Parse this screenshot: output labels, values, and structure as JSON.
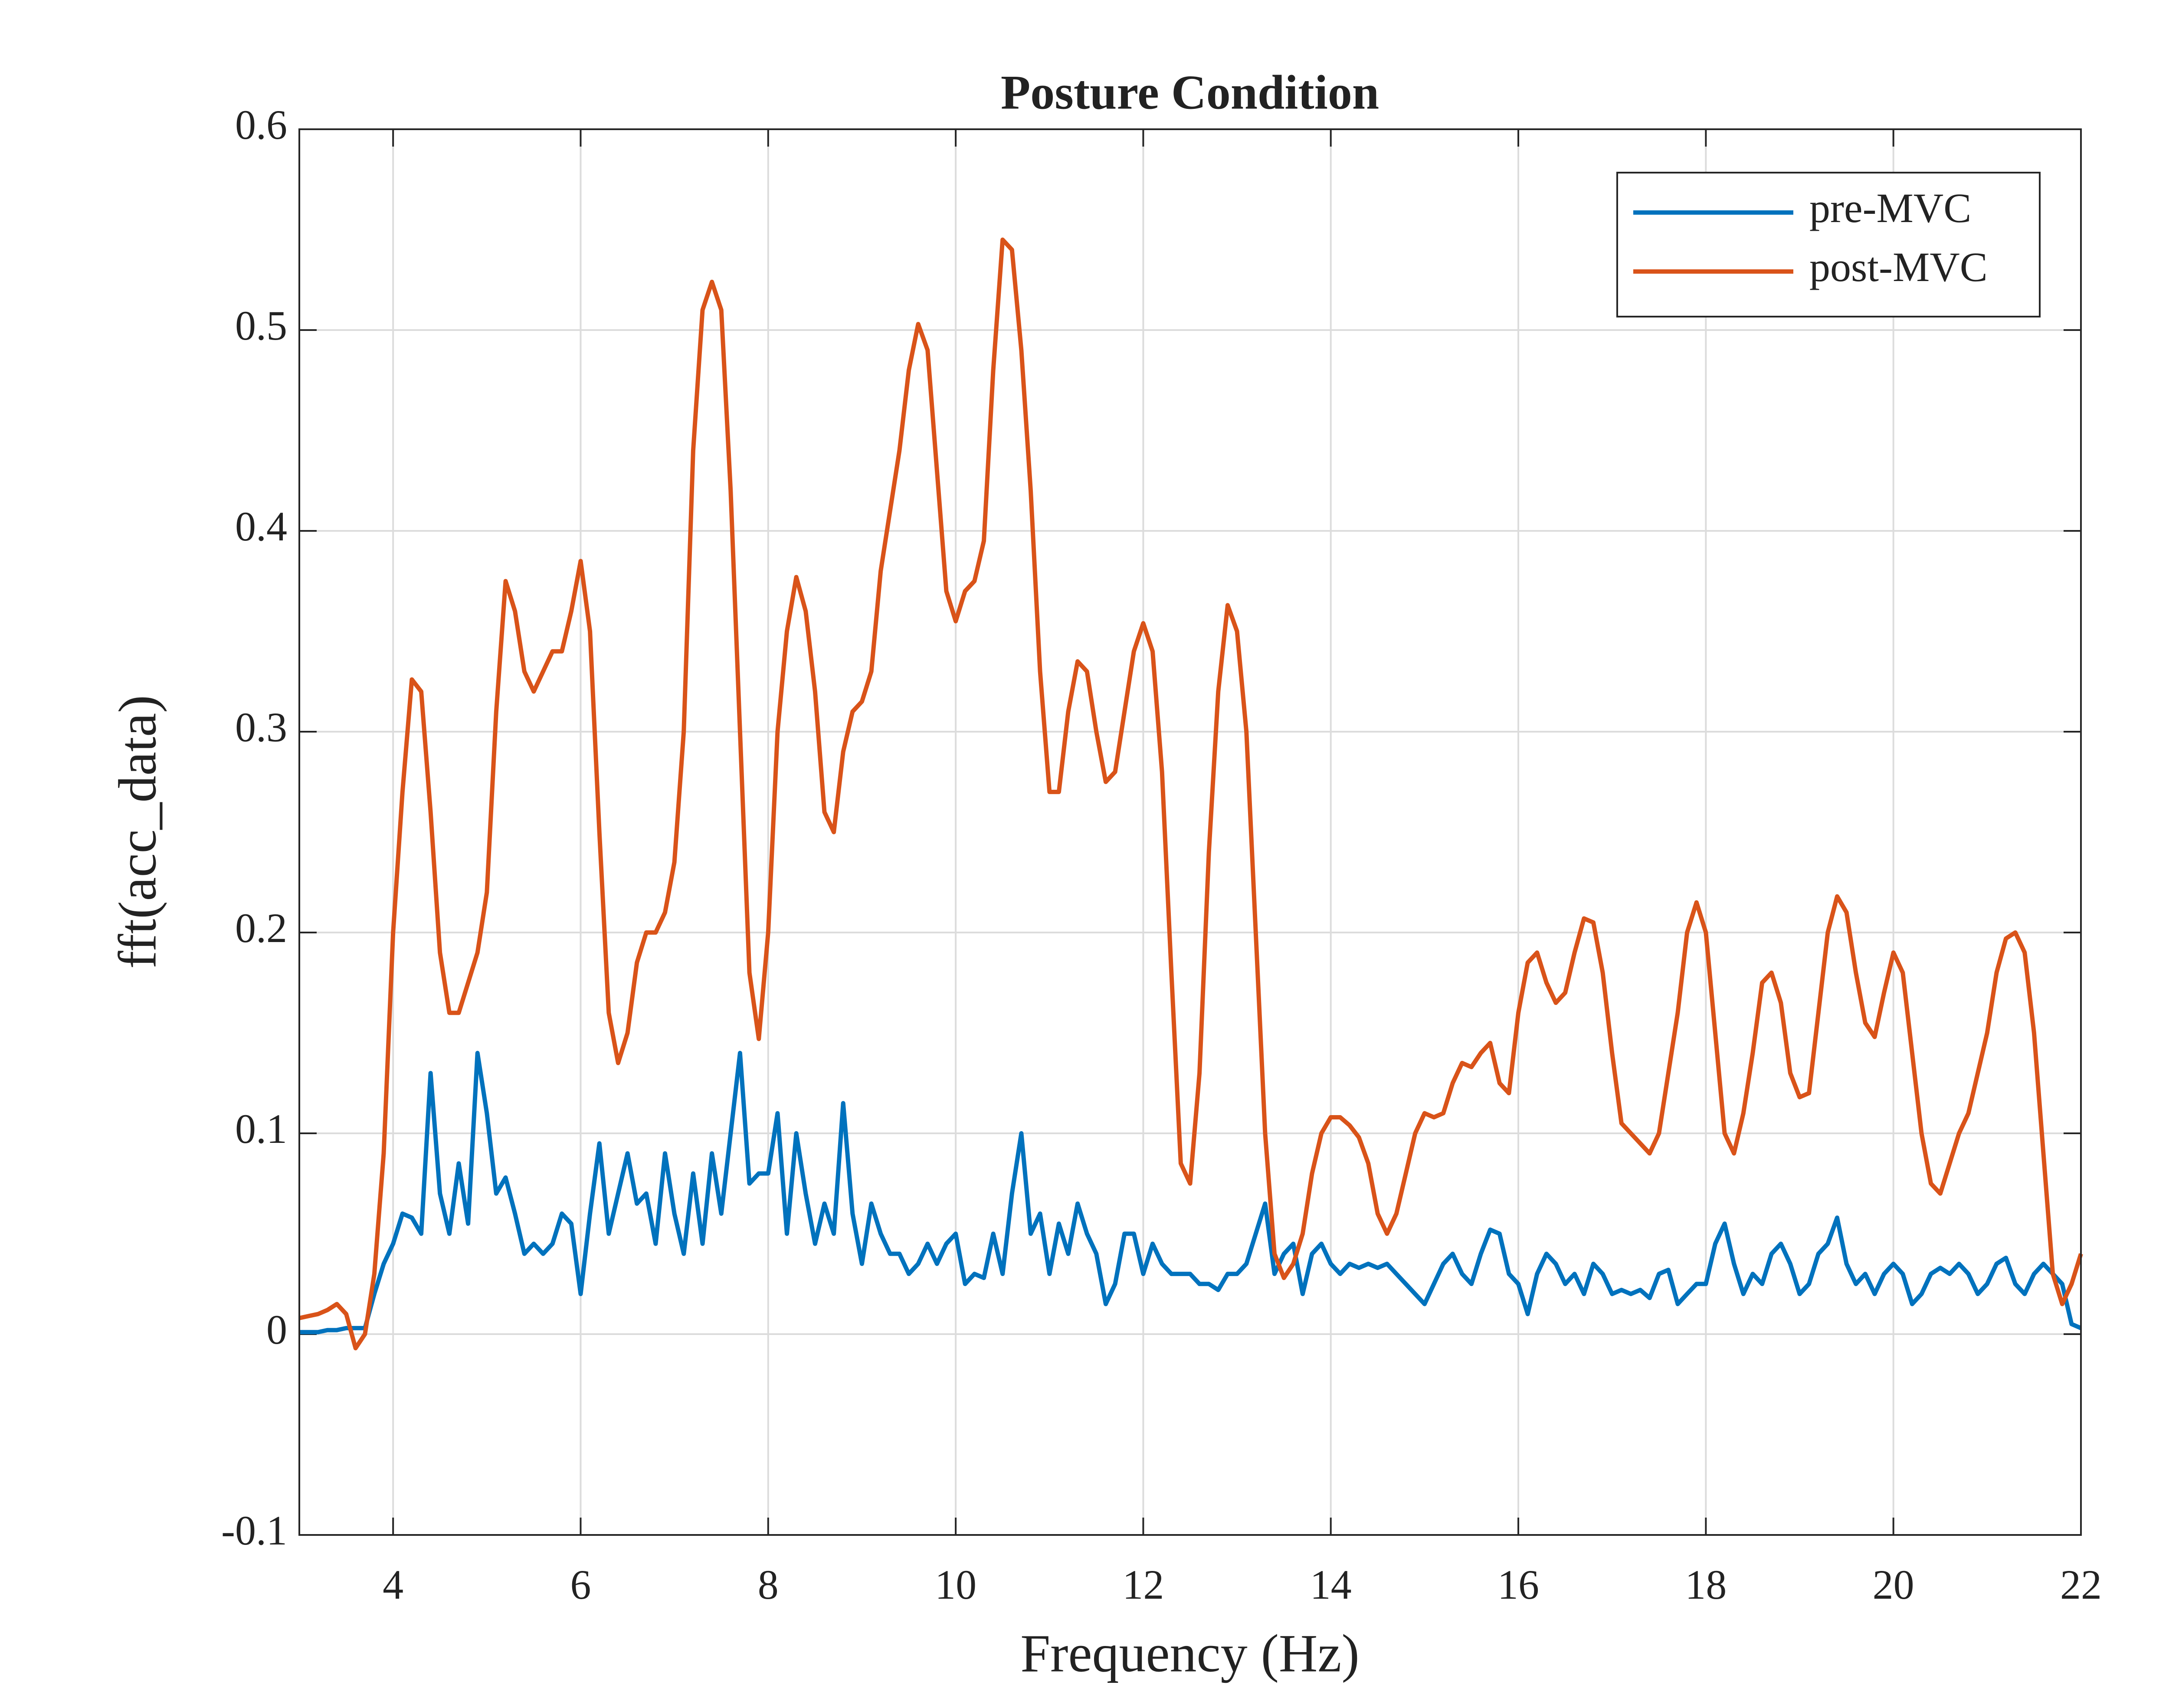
{
  "chart_data": {
    "type": "line",
    "title": "Posture Condition",
    "xlabel": "Frequency (Hz)",
    "ylabel": "fft(acc_data)",
    "x": [
      3,
      3.1,
      3.2,
      3.3,
      3.4,
      3.5,
      3.6,
      3.7,
      3.8,
      3.9,
      4,
      4.1,
      4.2,
      4.3,
      4.4,
      4.5,
      4.6,
      4.7,
      4.8,
      4.9,
      5,
      5.1,
      5.2,
      5.3,
      5.4,
      5.5,
      5.6,
      5.7,
      5.8,
      5.9,
      6,
      6.1,
      6.2,
      6.3,
      6.4,
      6.5,
      6.6,
      6.7,
      6.8,
      6.9,
      7,
      7.1,
      7.2,
      7.3,
      7.4,
      7.5,
      7.6,
      7.7,
      7.8,
      7.9,
      8,
      8.1,
      8.2,
      8.3,
      8.4,
      8.5,
      8.6,
      8.7,
      8.8,
      8.9,
      9,
      9.1,
      9.2,
      9.3,
      9.4,
      9.5,
      9.6,
      9.7,
      9.8,
      9.9,
      10,
      10.1,
      10.2,
      10.3,
      10.4,
      10.5,
      10.6,
      10.7,
      10.8,
      10.9,
      11,
      11.1,
      11.2,
      11.3,
      11.4,
      11.5,
      11.6,
      11.7,
      11.8,
      11.9,
      12,
      12.1,
      12.2,
      12.3,
      12.4,
      12.5,
      12.6,
      12.7,
      12.8,
      12.9,
      13,
      13.1,
      13.2,
      13.3,
      13.4,
      13.5,
      13.6,
      13.7,
      13.8,
      13.9,
      14,
      14.1,
      14.2,
      14.3,
      14.4,
      14.5,
      14.6,
      14.7,
      14.8,
      14.9,
      15,
      15.1,
      15.2,
      15.3,
      15.4,
      15.5,
      15.6,
      15.7,
      15.8,
      15.9,
      16,
      16.1,
      16.2,
      16.3,
      16.4,
      16.5,
      16.6,
      16.7,
      16.8,
      16.9,
      17,
      17.1,
      17.2,
      17.3,
      17.4,
      17.5,
      17.6,
      17.7,
      17.8,
      17.9,
      18,
      18.1,
      18.2,
      18.3,
      18.4,
      18.5,
      18.6,
      18.7,
      18.8,
      18.9,
      19,
      19.1,
      19.2,
      19.3,
      19.4,
      19.5,
      19.6,
      19.7,
      19.8,
      19.9,
      20,
      20.1,
      20.2,
      20.3,
      20.4,
      20.5,
      20.6,
      20.7,
      20.8,
      20.9,
      21,
      21.1,
      21.2,
      21.3,
      21.4,
      21.5,
      21.6,
      21.7,
      21.8,
      21.9,
      22
    ],
    "series": [
      {
        "name": "pre-MVC",
        "color": "#0072BD",
        "values": [
          0.001,
          0.001,
          0.001,
          0.002,
          0.002,
          0.003,
          0.003,
          0.003,
          0.02,
          0.035,
          0.045,
          0.06,
          0.058,
          0.05,
          0.13,
          0.07,
          0.05,
          0.085,
          0.055,
          0.14,
          0.11,
          0.07,
          0.078,
          0.06,
          0.04,
          0.045,
          0.04,
          0.045,
          0.06,
          0.055,
          0.02,
          0.06,
          0.095,
          0.05,
          0.07,
          0.09,
          0.065,
          0.07,
          0.045,
          0.09,
          0.06,
          0.04,
          0.08,
          0.045,
          0.09,
          0.06,
          0.1,
          0.14,
          0.075,
          0.08,
          0.08,
          0.11,
          0.05,
          0.1,
          0.07,
          0.045,
          0.065,
          0.05,
          0.115,
          0.06,
          0.035,
          0.065,
          0.05,
          0.04,
          0.04,
          0.03,
          0.035,
          0.045,
          0.035,
          0.045,
          0.05,
          0.025,
          0.03,
          0.028,
          0.05,
          0.03,
          0.07,
          0.1,
          0.05,
          0.06,
          0.03,
          0.055,
          0.04,
          0.065,
          0.05,
          0.04,
          0.015,
          0.025,
          0.05,
          0.05,
          0.03,
          0.045,
          0.035,
          0.03,
          0.03,
          0.03,
          0.025,
          0.025,
          0.022,
          0.03,
          0.03,
          0.035,
          0.05,
          0.065,
          0.03,
          0.04,
          0.045,
          0.02,
          0.04,
          0.045,
          0.035,
          0.03,
          0.035,
          0.033,
          0.035,
          0.033,
          0.035,
          0.03,
          0.025,
          0.02,
          0.015,
          0.025,
          0.035,
          0.04,
          0.03,
          0.025,
          0.04,
          0.052,
          0.05,
          0.03,
          0.025,
          0.01,
          0.03,
          0.04,
          0.035,
          0.025,
          0.03,
          0.02,
          0.035,
          0.03,
          0.02,
          0.022,
          0.02,
          0.022,
          0.018,
          0.03,
          0.032,
          0.015,
          0.02,
          0.025,
          0.025,
          0.045,
          0.055,
          0.035,
          0.02,
          0.03,
          0.025,
          0.04,
          0.045,
          0.035,
          0.02,
          0.025,
          0.04,
          0.045,
          0.058,
          0.035,
          0.025,
          0.03,
          0.02,
          0.03,
          0.035,
          0.03,
          0.015,
          0.02,
          0.03,
          0.033,
          0.03,
          0.035,
          0.03,
          0.02,
          0.025,
          0.035,
          0.038,
          0.025,
          0.02,
          0.03,
          0.035,
          0.03,
          0.025,
          0.005,
          0.003
        ]
      },
      {
        "name": "post-MVC",
        "color": "#D95319",
        "values": [
          0.008,
          0.009,
          0.01,
          0.012,
          0.015,
          0.01,
          -0.007,
          0.0,
          0.03,
          0.09,
          0.2,
          0.27,
          0.326,
          0.32,
          0.26,
          0.19,
          0.16,
          0.16,
          0.175,
          0.19,
          0.22,
          0.31,
          0.375,
          0.36,
          0.33,
          0.32,
          0.33,
          0.34,
          0.34,
          0.36,
          0.385,
          0.35,
          0.25,
          0.16,
          0.135,
          0.15,
          0.185,
          0.2,
          0.2,
          0.21,
          0.235,
          0.3,
          0.44,
          0.51,
          0.524,
          0.51,
          0.42,
          0.3,
          0.18,
          0.147,
          0.2,
          0.3,
          0.35,
          0.377,
          0.36,
          0.32,
          0.26,
          0.25,
          0.29,
          0.31,
          0.315,
          0.33,
          0.38,
          0.41,
          0.44,
          0.48,
          0.503,
          0.49,
          0.43,
          0.37,
          0.355,
          0.37,
          0.375,
          0.395,
          0.48,
          0.545,
          0.54,
          0.49,
          0.42,
          0.33,
          0.27,
          0.27,
          0.31,
          0.335,
          0.33,
          0.3,
          0.275,
          0.28,
          0.31,
          0.34,
          0.354,
          0.34,
          0.28,
          0.18,
          0.085,
          0.075,
          0.13,
          0.24,
          0.32,
          0.363,
          0.35,
          0.3,
          0.2,
          0.1,
          0.04,
          0.028,
          0.035,
          0.05,
          0.08,
          0.1,
          0.108,
          0.108,
          0.104,
          0.098,
          0.085,
          0.06,
          0.05,
          0.06,
          0.08,
          0.1,
          0.11,
          0.108,
          0.11,
          0.125,
          0.135,
          0.133,
          0.14,
          0.145,
          0.125,
          0.12,
          0.16,
          0.185,
          0.19,
          0.175,
          0.165,
          0.17,
          0.19,
          0.207,
          0.205,
          0.18,
          0.14,
          0.105,
          0.1,
          0.095,
          0.09,
          0.1,
          0.13,
          0.16,
          0.2,
          0.215,
          0.2,
          0.15,
          0.1,
          0.09,
          0.11,
          0.14,
          0.175,
          0.18,
          0.165,
          0.13,
          0.118,
          0.12,
          0.16,
          0.2,
          0.218,
          0.21,
          0.18,
          0.155,
          0.148,
          0.17,
          0.19,
          0.18,
          0.14,
          0.1,
          0.075,
          0.07,
          0.085,
          0.1,
          0.11,
          0.13,
          0.15,
          0.18,
          0.197,
          0.2,
          0.19,
          0.15,
          0.09,
          0.03,
          0.015,
          0.025,
          0.04
        ]
      }
    ],
    "xlim": [
      3,
      22
    ],
    "xticks": [
      4,
      6,
      8,
      10,
      12,
      14,
      16,
      18,
      20,
      22
    ],
    "ylim": [
      -0.1,
      0.6
    ],
    "yticks": [
      -0.1,
      0,
      0.1,
      0.2,
      0.3,
      0.4,
      0.5,
      0.6
    ],
    "grid": true,
    "legend": "upper right"
  }
}
